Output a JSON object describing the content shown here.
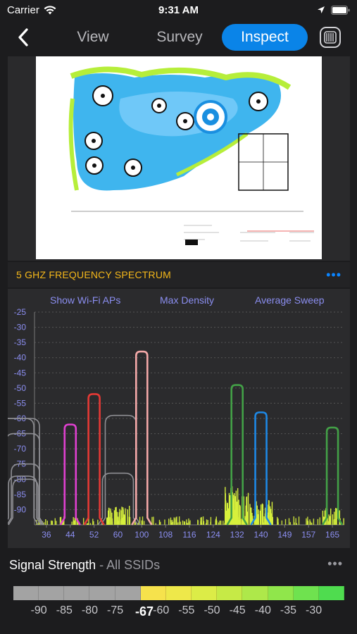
{
  "status": {
    "carrier": "Carrier",
    "time": "9:31 AM"
  },
  "nav": {
    "tabs": {
      "view": "View",
      "survey": "Survey",
      "inspect": "Inspect"
    },
    "active": "inspect"
  },
  "spectrum": {
    "title": "5 GHZ FREQUENCY SPECTRUM",
    "options": {
      "show_aps": "Show Wi-Fi APs",
      "density": "Max Density",
      "sweep": "Average Sweep"
    },
    "y_ticks": [
      "-25",
      "-30",
      "-35",
      "-40",
      "-45",
      "-50",
      "-55",
      "-60",
      "-65",
      "-70",
      "-75",
      "-80",
      "-85",
      "-90"
    ],
    "x_ticks": [
      "36",
      "44",
      "52",
      "60",
      "100",
      "108",
      "116",
      "124",
      "132",
      "140",
      "149",
      "157",
      "165"
    ]
  },
  "chart_data": {
    "type": "area",
    "title": "5 GHZ FREQUENCY SPECTRUM",
    "xlabel": "",
    "ylabel": "",
    "ylim": [
      -95,
      -25
    ],
    "categories": [
      "36",
      "44",
      "52",
      "60",
      "100",
      "108",
      "116",
      "124",
      "132",
      "140",
      "149",
      "157",
      "165"
    ],
    "series": [
      {
        "color": "#8e8e93",
        "peaks": [
          {
            "channel": "40",
            "value": -60
          },
          {
            "channel": "44",
            "value": -75
          },
          {
            "channel": "56",
            "value": -60
          },
          {
            "channel": "60",
            "value": -60
          }
        ]
      },
      {
        "color": "#e040d0",
        "peaks": [
          {
            "channel": "44",
            "value": -62
          }
        ]
      },
      {
        "color": "#e53935",
        "peaks": [
          {
            "channel": "52",
            "value": -52
          }
        ]
      },
      {
        "color": "#f4a9a8",
        "peaks": [
          {
            "channel": "100",
            "value": -38
          }
        ]
      },
      {
        "color": "#43a047",
        "peaks": [
          {
            "channel": "132",
            "value": -49
          },
          {
            "channel": "165",
            "value": -63
          }
        ]
      },
      {
        "color": "#1e88e5",
        "peaks": [
          {
            "channel": "140",
            "value": -58
          }
        ]
      }
    ]
  },
  "signal": {
    "title": "Signal Strength",
    "subtitle": "All SSIDs",
    "current": "-67",
    "labels": [
      "-90",
      "-85",
      "-80",
      "-75",
      "-67",
      "-60",
      "-55",
      "-50",
      "-45",
      "-40",
      "-35",
      "-30"
    ],
    "scale_colors": [
      "#a3a3a3",
      "#a3a3a3",
      "#a3a3a3",
      "#a3a3a3",
      "#a3a3a3",
      "#f6e24c",
      "#eee84a",
      "#dcec47",
      "#c6ea46",
      "#aee84a",
      "#90e64b",
      "#6fe24f",
      "#4fdc4f"
    ]
  }
}
